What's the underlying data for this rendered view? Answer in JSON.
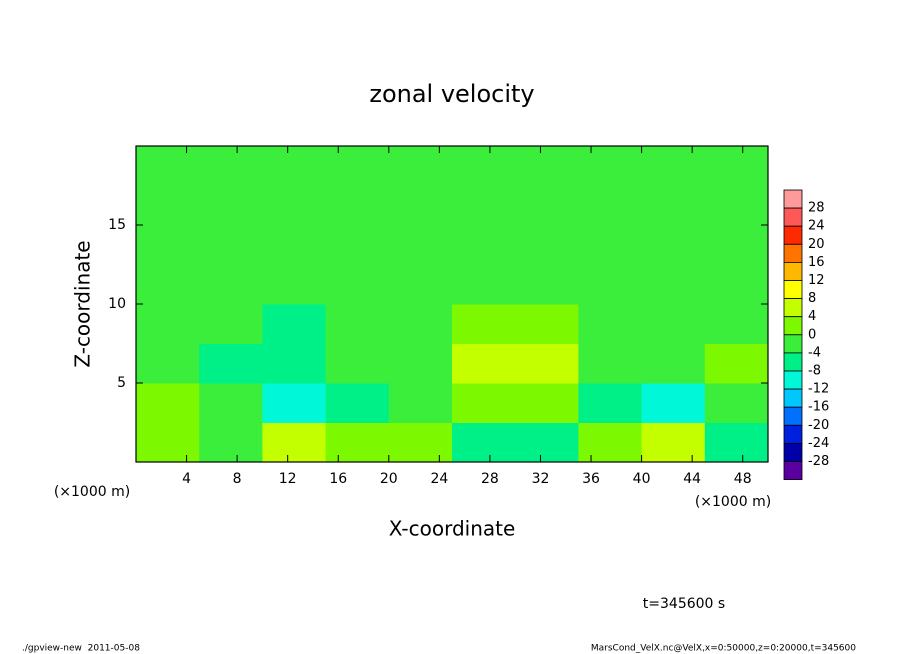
{
  "chart_data": {
    "type": "heatmap",
    "title": "zonal velocity",
    "x_label": "X-coordinate",
    "y_label": "Z-coordinate",
    "y_unit_label": "(×1000 m)",
    "x_unit_label": "(×1000 m)",
    "xlim": [
      0,
      50
    ],
    "ylim": [
      0,
      20
    ],
    "xticks": [
      4,
      8,
      12,
      16,
      20,
      24,
      28,
      32,
      36,
      40,
      44,
      48
    ],
    "yticks": [
      5,
      10,
      15
    ],
    "x_edges": [
      0,
      5,
      10,
      15,
      20,
      25,
      30,
      35,
      40,
      45,
      50
    ],
    "y_edges": [
      0,
      2.5,
      5,
      7.5,
      10,
      12.5,
      15,
      17.5,
      20
    ],
    "values": [
      [
        0,
        -2,
        6,
        2,
        0,
        -8,
        -6,
        0,
        4,
        -8
      ],
      [
        2,
        -4,
        -9,
        -6,
        -2,
        2,
        0,
        -6,
        -9,
        -2
      ],
      [
        -2,
        -6,
        -8,
        -4,
        -4,
        6,
        4,
        -4,
        -4,
        2
      ],
      [
        -2,
        -4,
        -5,
        -3,
        -2,
        2,
        0,
        -2,
        -2,
        -2
      ],
      [
        -2,
        -1,
        -2,
        -2,
        -1,
        -2,
        -1,
        -2,
        -2,
        -1
      ],
      [
        -1,
        -2,
        -1,
        -1,
        -2,
        -2,
        -1,
        -1,
        -2,
        -2
      ],
      [
        -2,
        -1,
        -1,
        -2,
        -1,
        -1,
        -2,
        -1,
        -1,
        -2
      ],
      [
        -1,
        -2,
        -2,
        -1,
        -1,
        -2,
        -1,
        -2,
        -1,
        -1
      ]
    ],
    "levels": [
      28,
      24,
      20,
      16,
      12,
      8,
      4,
      0,
      -4,
      -8,
      -12,
      -16,
      -20,
      -24,
      -28
    ],
    "colors": [
      "#ff9a9a",
      "#ff5858",
      "#ff2a00",
      "#ff7400",
      "#ffb800",
      "#ffff00",
      "#c4ff00",
      "#7cf800",
      "#3cee3c",
      "#00f088",
      "#00f8d8",
      "#00c8ff",
      "#0070ff",
      "#0020e0",
      "#0000a8",
      "#5a00a0"
    ],
    "annotation": "t=345600 s",
    "footer_left": "./gpview-new  2011-05-08",
    "footer_right": "MarsCond_VelX.nc@VelX,x=0:50000,z=0:20000,t=345600"
  }
}
